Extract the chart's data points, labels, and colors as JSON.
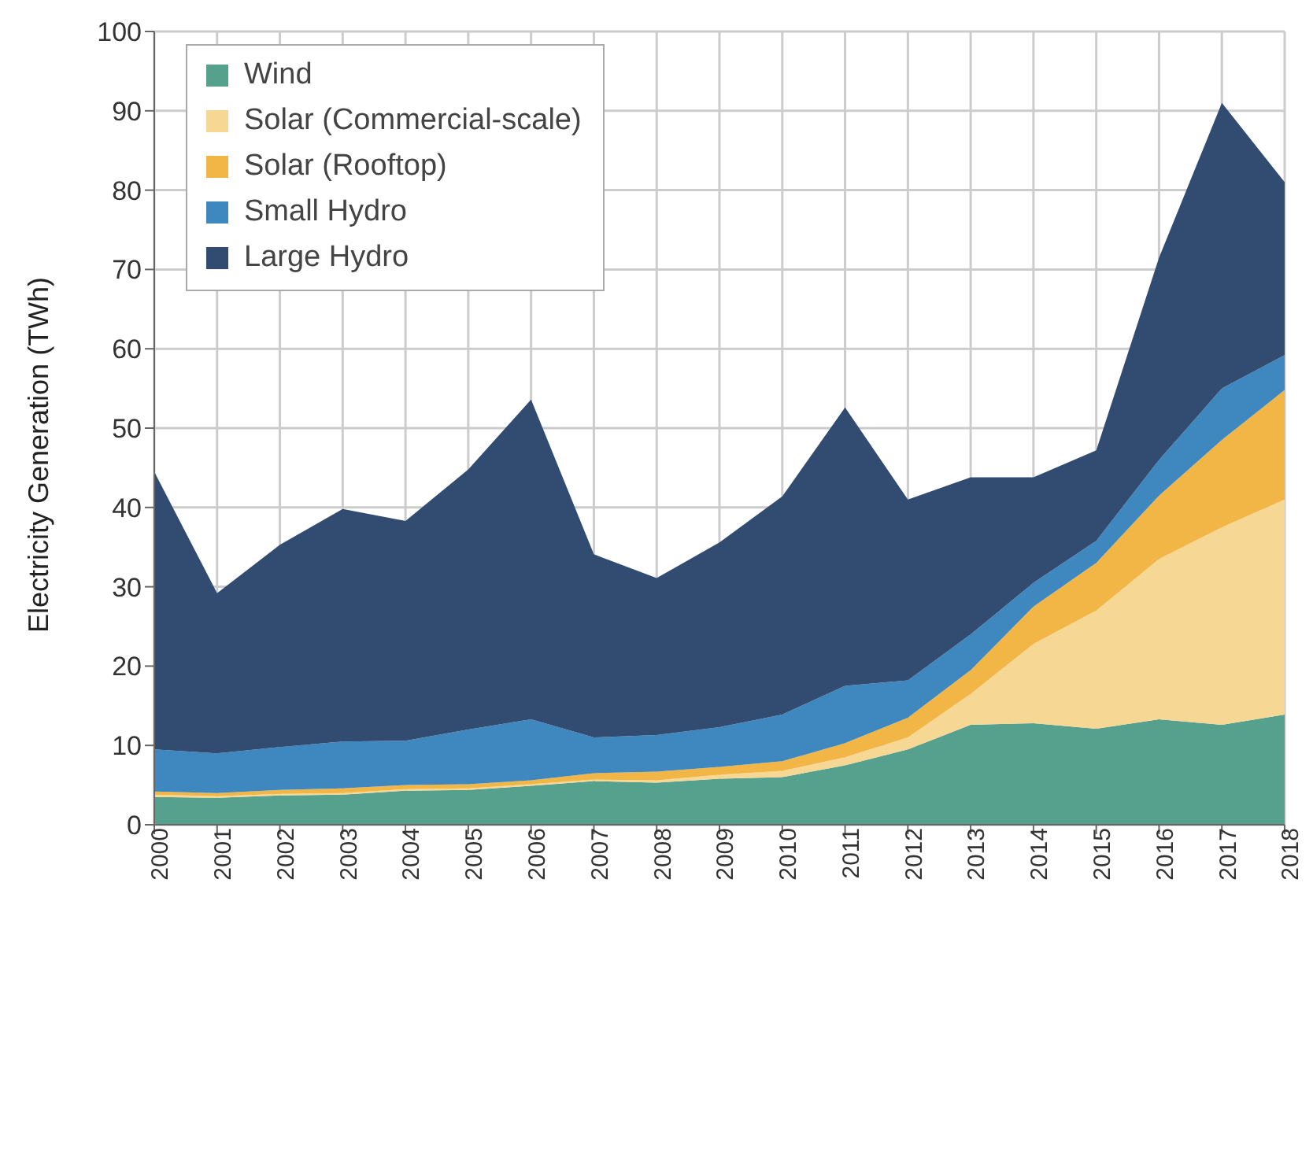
{
  "chart_data": {
    "type": "area",
    "stacked": true,
    "ylabel": "Electricity Generation (TWh)",
    "categories": [
      "2000",
      "2001",
      "2002",
      "2003",
      "2004",
      "2005",
      "2006",
      "2007",
      "2008",
      "2009",
      "2010",
      "2011",
      "2012",
      "2013",
      "2014",
      "2015",
      "2016",
      "2017",
      "2018"
    ],
    "ylim": [
      0,
      100
    ],
    "yticks": [
      0,
      10,
      20,
      30,
      40,
      50,
      60,
      70,
      80,
      90,
      100
    ],
    "grid": true,
    "legend": "top left",
    "series": [
      {
        "name": "Wind",
        "color": "#56a08e",
        "values": [
          3.5,
          3.4,
          3.7,
          3.8,
          4.3,
          4.4,
          4.9,
          5.5,
          5.3,
          5.8,
          6.0,
          7.5,
          9.5,
          12.6,
          12.8,
          12.1,
          13.3,
          12.6,
          13.9
        ]
      },
      {
        "name": "Solar (Commercial-scale)",
        "color": "#f6d794",
        "values": [
          0.3,
          0.2,
          0.2,
          0.2,
          0.2,
          0.2,
          0.2,
          0.2,
          0.3,
          0.5,
          0.8,
          1.0,
          1.5,
          3.9,
          10.0,
          14.9,
          20.2,
          24.9,
          27.1
        ]
      },
      {
        "name": "Solar (Rooftop)",
        "color": "#f2b646",
        "values": [
          0.4,
          0.4,
          0.5,
          0.6,
          0.5,
          0.5,
          0.5,
          0.8,
          1.1,
          1.0,
          1.2,
          1.8,
          2.5,
          3.0,
          4.7,
          6.0,
          8.0,
          11.0,
          13.8
        ]
      },
      {
        "name": "Small Hydro",
        "color": "#3f88bf",
        "values": [
          5.3,
          5.0,
          5.4,
          5.9,
          5.6,
          6.9,
          7.7,
          4.5,
          4.6,
          5.0,
          5.9,
          7.2,
          4.7,
          4.5,
          3.0,
          2.8,
          4.5,
          6.5,
          4.4
        ]
      },
      {
        "name": "Large Hydro",
        "color": "#324b70",
        "values": [
          35.0,
          20.2,
          25.5,
          29.3,
          27.7,
          32.8,
          40.3,
          23.1,
          19.8,
          23.3,
          27.5,
          35.1,
          22.8,
          19.8,
          13.3,
          11.4,
          25.5,
          36.0,
          21.8
        ]
      }
    ]
  }
}
